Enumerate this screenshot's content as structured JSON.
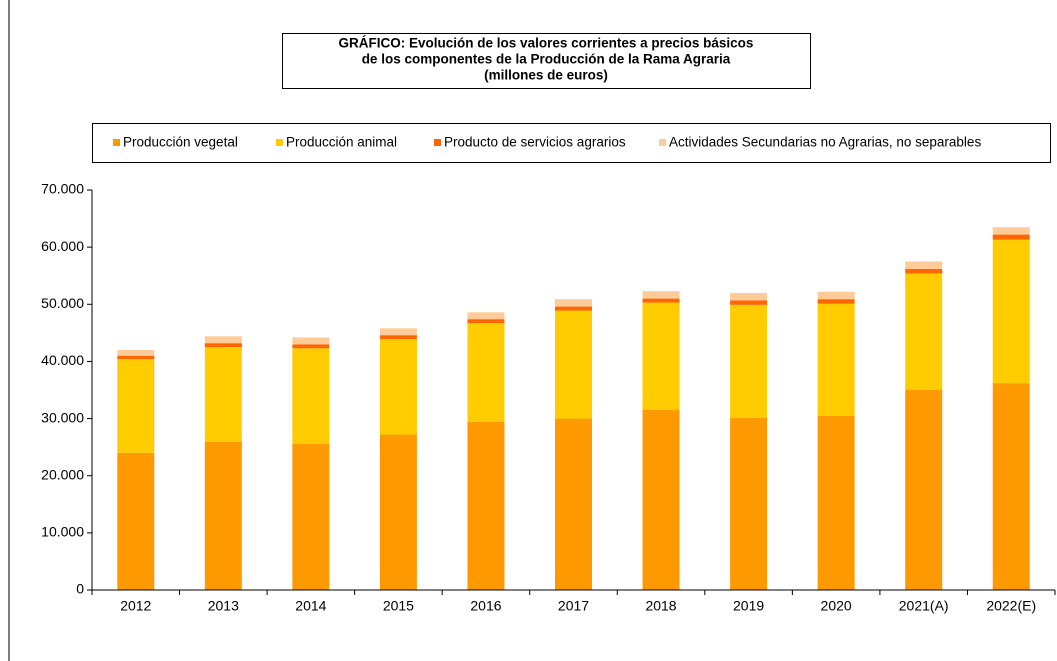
{
  "chart_data": {
    "type": "stacked_bar",
    "title": [
      "GRÁFICO: Evolución de los valores corrientes a precios básicos",
      "de los componentes de la Producción de la Rama Agraria",
      "(millones de euros)"
    ],
    "categories": [
      "2012",
      "2013",
      "2014",
      "2015",
      "2016",
      "2017",
      "2018",
      "2019",
      "2020",
      "2021(A)",
      "2022(E)"
    ],
    "series": [
      {
        "name": "Producción vegetal",
        "color": "#FF9900",
        "values": [
          24000,
          25900,
          25600,
          27200,
          29400,
          30000,
          31500,
          30100,
          30500,
          35000,
          36200
        ]
      },
      {
        "name": "Producción animal",
        "color": "#FFCC00",
        "values": [
          16400,
          16600,
          16700,
          16700,
          17300,
          18900,
          18800,
          19800,
          19600,
          20400,
          25100
        ]
      },
      {
        "name": "Producto de servicios agrarios",
        "color": "#FF6600",
        "values": [
          600,
          700,
          700,
          700,
          700,
          700,
          700,
          800,
          800,
          800,
          900
        ]
      },
      {
        "name": "Actividades Secundarias no Agrarias, no separables",
        "color": "#FFCC99",
        "values": [
          1000,
          1200,
          1200,
          1200,
          1200,
          1300,
          1300,
          1300,
          1300,
          1300,
          1300
        ]
      }
    ],
    "ylim": [
      0,
      70000
    ],
    "yticks": [
      0,
      {
        "value": 10000,
        "label": "10.000"
      },
      {
        "value": 20000,
        "label": "20.000"
      },
      {
        "value": 30000,
        "label": "30.000"
      },
      {
        "value": 40000,
        "label": "40.000"
      },
      {
        "value": 50000,
        "label": "50.000"
      },
      {
        "value": 60000,
        "label": "60.000"
      },
      {
        "value": 70000,
        "label": "70.000"
      }
    ],
    "grid": false
  }
}
